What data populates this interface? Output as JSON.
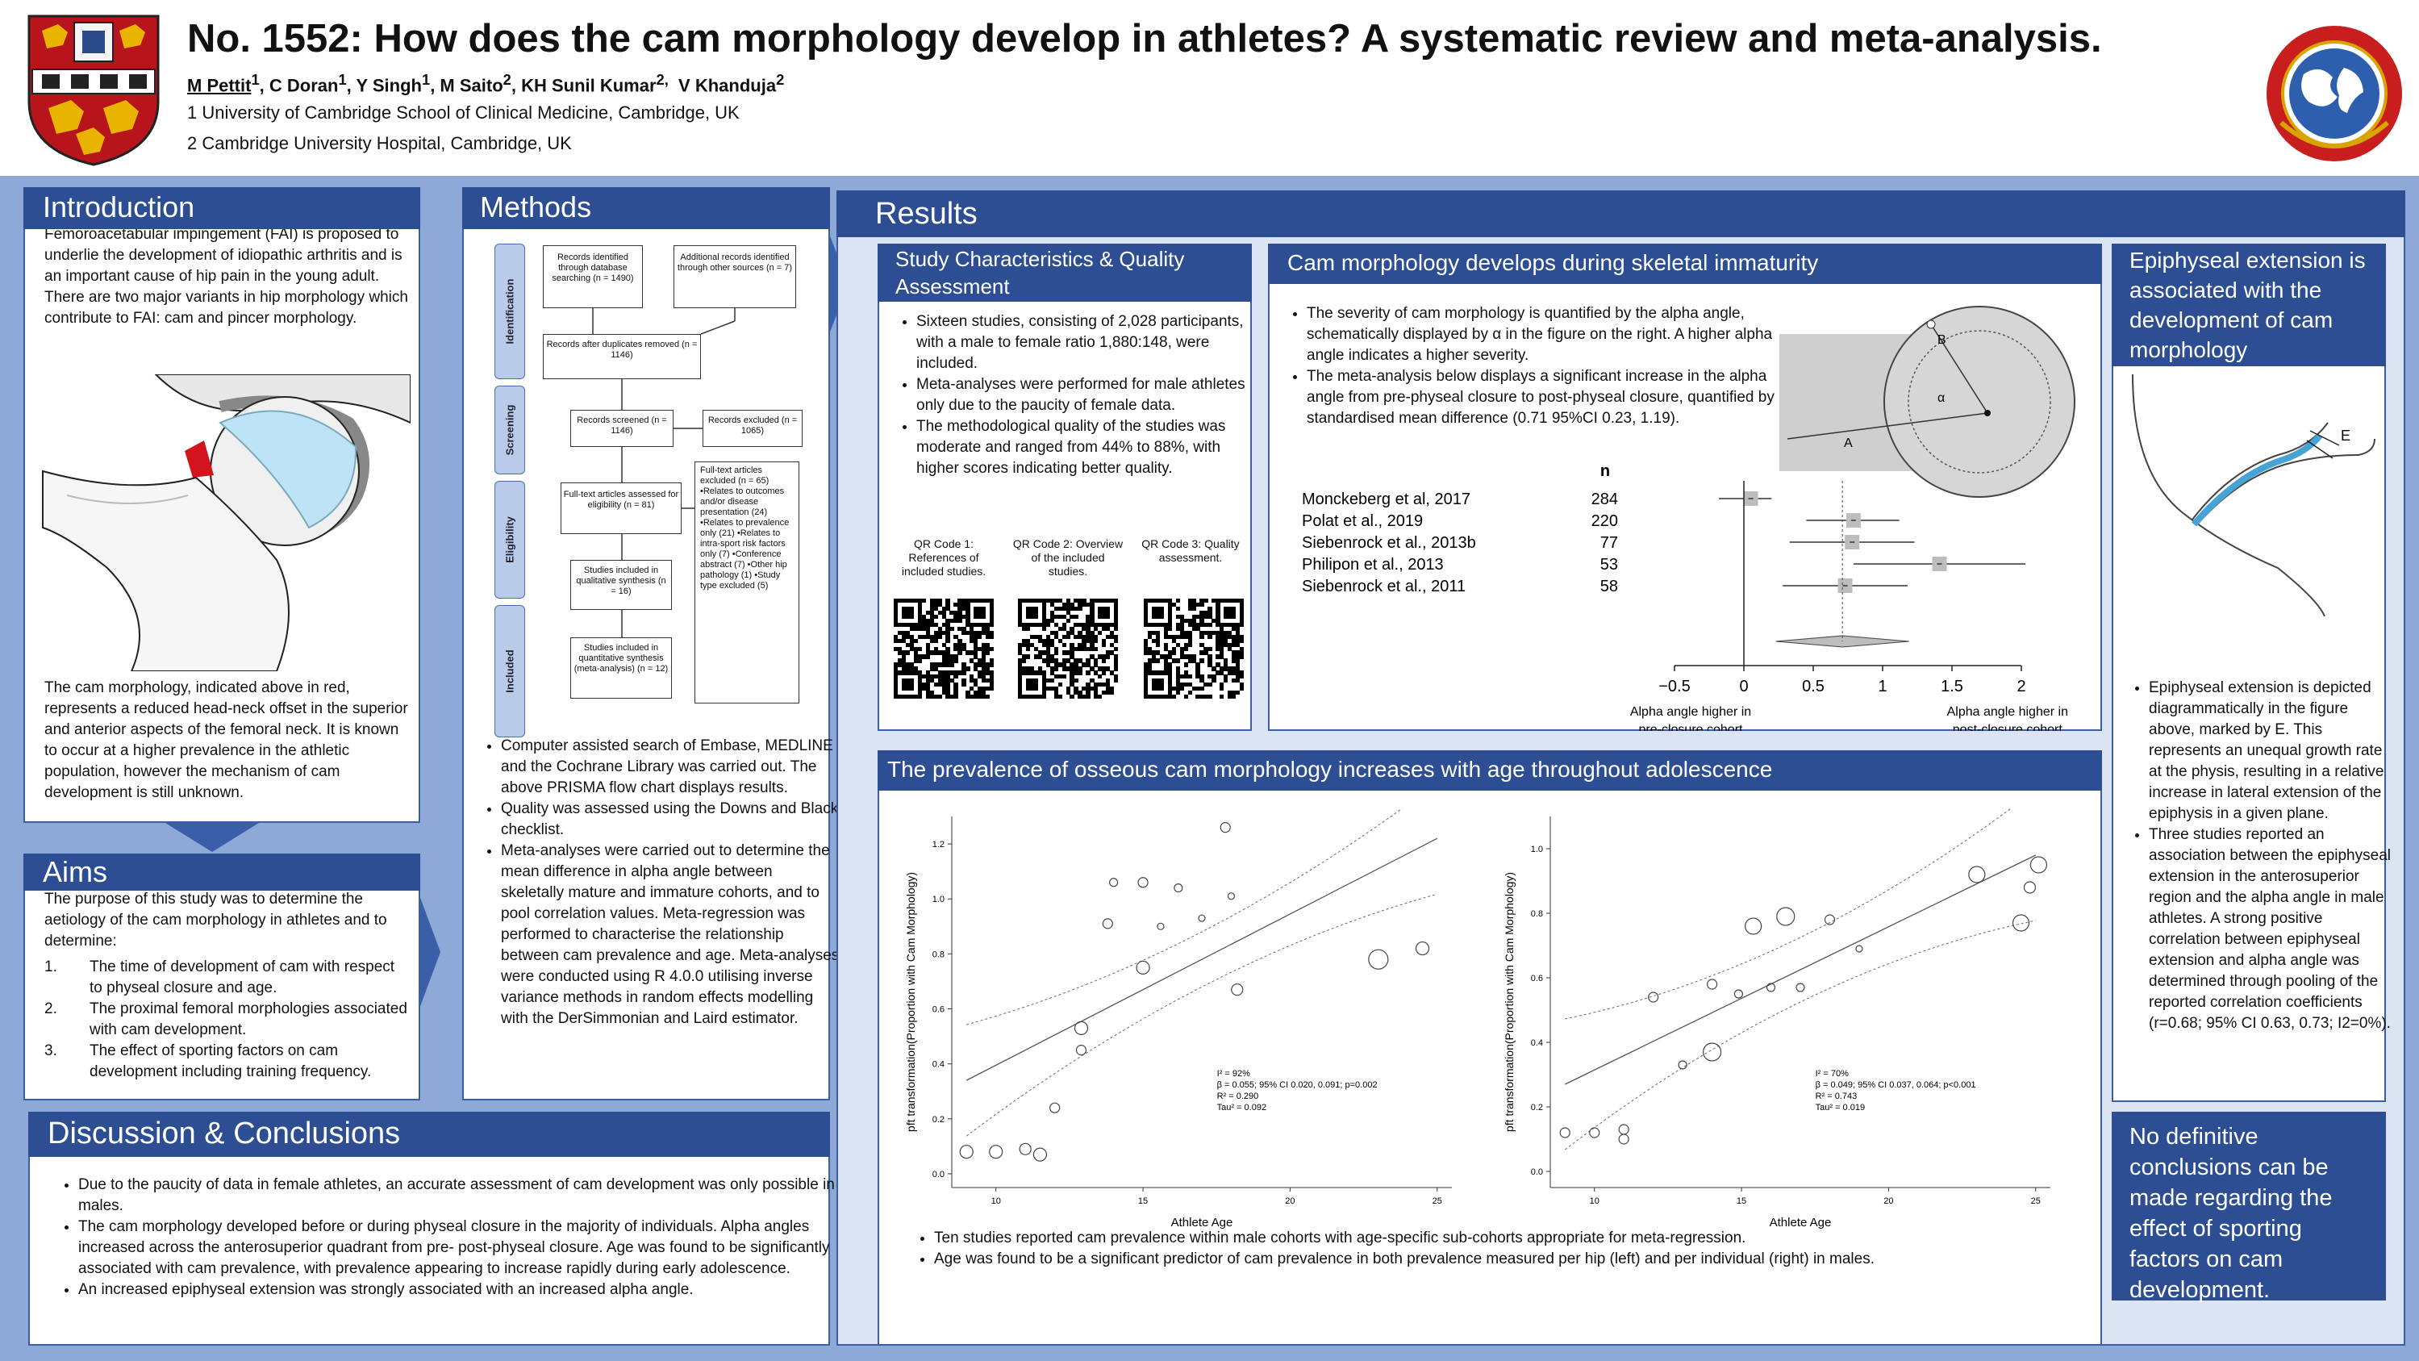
{
  "header": {
    "title": "No. 1552: How does the cam morphology develop in athletes? A systematic review and meta-analysis.",
    "authors": [
      {
        "name": "M Pettit",
        "sup": "1",
        "underline": true
      },
      {
        "name": ", C Doran",
        "sup": "1"
      },
      {
        "name": ", Y Singh",
        "sup": "1"
      },
      {
        "name": ", M Saito",
        "sup": "2"
      },
      {
        "name": ", KH Sunil Kumar",
        "sup": "2,"
      },
      {
        "name": "  V Khanduja",
        "sup": "2"
      }
    ],
    "affiliation1": "1 University of Cambridge School of Clinical Medicine, Cambridge, UK",
    "affiliation2": "2 Cambridge University Hospital, Cambridge, UK"
  },
  "introduction": {
    "title": "Introduction",
    "text1": "Femoroacetabular impingement (FAI) is proposed to underlie the development of idiopathic arthritis and is an important cause of hip pain in the young adult. There are two major variants in hip morphology which contribute to FAI: cam and pincer morphology.",
    "text2": "The cam morphology, indicated above in red, represents a reduced head-neck offset in the superior and anterior aspects of the femoral neck. It is known to occur at a higher prevalence in the athletic population, however the mechanism of cam development is still unknown."
  },
  "aims": {
    "title": "Aims",
    "intro": "The purpose of this study was to determine the aetiology of the cam morphology in athletes and to determine:",
    "items": [
      {
        "num": "1.",
        "text": "The time of development of cam with respect to physeal closure and age."
      },
      {
        "num": "2.",
        "text": "The proximal femoral morphologies associated with cam development."
      },
      {
        "num": "3.",
        "text": "The effect of sporting factors on cam development including training frequency."
      }
    ]
  },
  "methods": {
    "title": "Methods",
    "stages": [
      "Identification",
      "Screening",
      "Eligibility",
      "Included"
    ],
    "flow": {
      "db": "Records identified through database searching (n = 1490)",
      "other": "Additional records identified through other sources (n = 7)",
      "dup": "Records after duplicates removed (n = 1146)",
      "screened": "Records screened (n = 1146)",
      "excluded": "Records excluded (n = 1065)",
      "fulltext": "Full-text articles assessed for eligibility (n = 81)",
      "ftexcluded": "Full-text articles excluded (n = 65) •Relates to outcomes and/or disease presentation (24) •Relates to prevalence only (21) •Relates to intra-sport risk factors only (7) •Conference abstract (7) •Other hip pathology (1) •Study type excluded (5)",
      "qual": "Studies included in qualitative synthesis (n = 16)",
      "quant": "Studies included in quantitative synthesis (meta-analysis) (n = 12)"
    },
    "bullets": [
      "Computer assisted search of  Embase, MEDLINE and the Cochrane Library was carried out. The above PRISMA flow chart displays results.",
      "Quality was assessed using the Downs and Black checklist.",
      "Meta-analyses were carried out to determine the mean difference in alpha angle between skeletally mature and immature cohorts, and to pool correlation values. Meta-regression was performed to characterise the relationship between cam prevalence and age. Meta-analyses were conducted using R 4.0.0 utilising inverse variance methods in random effects modelling with the DerSimmonian and Laird estimator."
    ]
  },
  "discussion": {
    "title": "Discussion & Conclusions",
    "bullets": [
      "Due to the paucity of data in female athletes, an accurate assessment of cam development was only possible in males.",
      "The cam morphology developed before or during physeal closure in the majority of individuals. Alpha angles increased across the anterosuperior quadrant from pre- post-physeal closure. Age was found to be significantly associated with cam prevalence, with prevalence appearing to increase rapidly during early adolescence.",
      "An increased epiphyseal extension was strongly associated with an increased alpha angle."
    ]
  },
  "results": {
    "title": "Results",
    "study_char": {
      "title": "Study Characteristics & Quality Assessment",
      "bullets": [
        "Sixteen studies, consisting of 2,028 participants, with a male to female ratio 1,880:148, were included.",
        "Meta-analyses were performed for male athletes only due to the paucity of female data.",
        "The methodological quality of the studies was moderate and ranged from 44% to 88%, with higher scores indicating better quality."
      ],
      "qr": [
        "QR Code 1: References of included studies.",
        "QR Code 2: Overview of the included studies.",
        "QR Code 3: Quality assessment."
      ]
    },
    "cam_dev": {
      "title": "Cam morphology develops during skeletal immaturity",
      "bullets": [
        "The severity of cam morphology is quantified by the alpha angle, schematically displayed by α in the figure on the right. A higher alpha angle indicates a higher severity.",
        "The meta-analysis below displays a significant increase in the alpha angle from pre-physeal closure to post-physeal closure, quantified by standardised mean difference (0.71 95%CI 0.23, 1.19)."
      ],
      "diagram_labels": {
        "b": "B",
        "alpha": "α",
        "a": "A"
      }
    },
    "prevalence": {
      "title": "The prevalence of osseous cam morphology increases with age throughout adolescence",
      "bullets": [
        "Ten studies reported cam prevalence within male cohorts with age-specific sub-cohorts appropriate for meta-regression.",
        "Age was found to be a significant predictor of cam prevalence in both prevalence measured per hip (left) and per individual (right) in males."
      ]
    },
    "epiphyseal": {
      "title": "Epiphyseal extension is associated with the development of cam morphology",
      "diagram_label": "E",
      "bullets": [
        "Epiphyseal extension is depicted diagrammatically in the figure above, marked by E. This represents an unequal growth rate at the physis, resulting in a relative increase in lateral extension of the epiphysis in a given plane.",
        "Three studies reported an association between the epiphyseal extension in the anterosuperior region and the alpha angle in male athletes. A strong positive correlation between epiphyseal extension and alpha angle was determined through pooling of the reported correlation coefficients (r=0.68; 95% CI 0.63, 0.73; I2=0%)."
      ]
    },
    "conclusion_box": "No definitive conclusions can be made regarding the effect of sporting factors on cam development."
  },
  "chart_data": [
    {
      "type": "scatter",
      "subtype": "forest",
      "n_header": "n",
      "studies": [
        "Monckeberg et al, 2017",
        "Polat et al., 2019",
        "Siebenrock et al., 2013b",
        "Philipon et al., 2013",
        "Siebenrock et al., 2011"
      ],
      "n": [
        284,
        220,
        77,
        53,
        58
      ],
      "smd": [
        0.05,
        0.79,
        0.78,
        1.41,
        0.73
      ],
      "ci_low": [
        -0.18,
        0.45,
        0.33,
        0.79,
        0.28
      ],
      "ci_high": [
        0.2,
        1.12,
        1.23,
        2.03,
        1.18
      ],
      "summary": {
        "estimate": 0.71,
        "ci": [
          0.23,
          1.19
        ]
      },
      "xlim": [
        -0.5,
        2
      ],
      "ticks": [
        "−0.5",
        "0",
        "0.5",
        "1",
        "1.5",
        "2"
      ],
      "tick_values": [
        -0.5,
        0,
        0.5,
        1,
        1.5,
        2
      ],
      "xlabel_left": "Alpha angle higher in pre-closure cohort",
      "xlabel_right": "Alpha angle higher in post-closure cohort"
    },
    {
      "type": "scatter",
      "xlabel": "Athlete Age",
      "ylabel": "pft transformation(Proportion with Cam Morphology)",
      "xlim": [
        8.5,
        25.5
      ],
      "ylim": [
        -0.05,
        1.3
      ],
      "xticks": [
        10,
        15,
        20,
        25
      ],
      "yticks": [
        "0.0",
        "0.2",
        "0.4",
        "0.6",
        "0.8",
        "1.0",
        "1.2"
      ],
      "points": [
        [
          9,
          0.08,
          8
        ],
        [
          10,
          0.08,
          8
        ],
        [
          11,
          0.09,
          7
        ],
        [
          11.5,
          0.07,
          8
        ],
        [
          12,
          0.24,
          6
        ],
        [
          12.9,
          0.45,
          6
        ],
        [
          12.9,
          0.53,
          8
        ],
        [
          13.8,
          0.91,
          6
        ],
        [
          14,
          1.06,
          5
        ],
        [
          15,
          0.75,
          8
        ],
        [
          15,
          1.06,
          6
        ],
        [
          15.6,
          0.9,
          4
        ],
        [
          16.2,
          1.04,
          5
        ],
        [
          17,
          0.93,
          4
        ],
        [
          17.8,
          1.26,
          6
        ],
        [
          18,
          1.01,
          4
        ],
        [
          18.2,
          0.67,
          7
        ],
        [
          23,
          0.78,
          12
        ],
        [
          24.5,
          0.82,
          8
        ]
      ],
      "fit": {
        "x": [
          9,
          25
        ],
        "y": [
          0.34,
          1.22
        ]
      },
      "annotation": [
        "I² = 92%",
        "β = 0.055; 95% CI 0.020, 0.091; p=0.002",
        "R² = 0.290",
        "Tau² = 0.092"
      ]
    },
    {
      "type": "scatter",
      "xlabel": "Athlete Age",
      "ylabel": "pft transformation(Proportion with Cam Morphology)",
      "xlim": [
        8.5,
        25.5
      ],
      "ylim": [
        -0.05,
        1.1
      ],
      "xticks": [
        10,
        15,
        20,
        25
      ],
      "yticks": [
        "0.0",
        "0.2",
        "0.4",
        "0.6",
        "0.8",
        "1.0"
      ],
      "points": [
        [
          9,
          0.12,
          6
        ],
        [
          10,
          0.12,
          6
        ],
        [
          11,
          0.13,
          6
        ],
        [
          11,
          0.1,
          6
        ],
        [
          12,
          0.54,
          6
        ],
        [
          13,
          0.33,
          5
        ],
        [
          14,
          0.37,
          11
        ],
        [
          14,
          0.58,
          6
        ],
        [
          14.9,
          0.55,
          5
        ],
        [
          15.4,
          0.76,
          10
        ],
        [
          16,
          0.57,
          5
        ],
        [
          16.5,
          0.79,
          11
        ],
        [
          17,
          0.57,
          5
        ],
        [
          18,
          0.78,
          6
        ],
        [
          19,
          0.69,
          4
        ],
        [
          23,
          0.92,
          10
        ],
        [
          24.5,
          0.77,
          10
        ],
        [
          24.8,
          0.88,
          7
        ],
        [
          25.1,
          0.95,
          10
        ]
      ],
      "fit": {
        "x": [
          9,
          25
        ],
        "y": [
          0.27,
          0.98
        ]
      },
      "annotation": [
        "I² = 70%",
        "β = 0.049; 95% CI 0.037, 0.064; p<0.001",
        "R² = 0.743",
        "Tau² = 0.019"
      ]
    }
  ]
}
